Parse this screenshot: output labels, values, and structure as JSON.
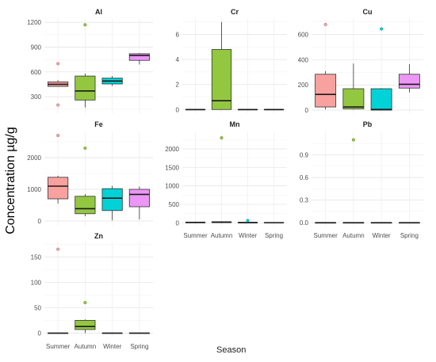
{
  "chart_data": {
    "type": "box",
    "ylabel": "Concentration µg/g",
    "xlabel": "Season",
    "categories": [
      "Summer",
      "Autumn",
      "Winter",
      "Spring"
    ],
    "colors": {
      "Summer": "#f8a19f",
      "Autumn": "#93c740",
      "Winter": "#00d2d8",
      "Spring": "#ec96f6"
    },
    "panels": [
      {
        "name": "Al",
        "ylim": [
          100,
          1250
        ],
        "ticks": [
          300,
          600,
          900,
          1200
        ],
        "boxes": [
          {
            "season": "Summer",
            "min": 420,
            "q1": 425,
            "median": 450,
            "q3": 480,
            "max": 500,
            "outliers": [
              700,
              200
            ]
          },
          {
            "season": "Autumn",
            "min": 170,
            "q1": 260,
            "median": 370,
            "q3": 550,
            "max": 580,
            "outliers": [
              1170
            ]
          },
          {
            "season": "Winter",
            "min": 430,
            "q1": 455,
            "median": 490,
            "q3": 525,
            "max": 550,
            "outliers": []
          },
          {
            "season": "Spring",
            "min": 690,
            "q1": 740,
            "median": 800,
            "q3": 820,
            "max": 830,
            "outliers": []
          }
        ]
      },
      {
        "name": "Cr",
        "ylim": [
          -0.3,
          7.3
        ],
        "ticks": [
          0,
          2,
          4,
          6
        ],
        "boxes": [
          {
            "season": "Summer",
            "min": 0,
            "q1": 0,
            "median": 0,
            "q3": 0,
            "max": 0,
            "outliers": []
          },
          {
            "season": "Autumn",
            "min": 0,
            "q1": 0,
            "median": 0.7,
            "q3": 4.8,
            "max": 7.0,
            "outliers": []
          },
          {
            "season": "Winter",
            "min": 0,
            "q1": 0,
            "median": 0,
            "q3": 0,
            "max": 0,
            "outliers": []
          },
          {
            "season": "Spring",
            "min": 0,
            "q1": 0,
            "median": 0,
            "q3": 0,
            "max": 0,
            "outliers": []
          }
        ]
      },
      {
        "name": "Cu",
        "ylim": [
          -25,
          730
        ],
        "ticks": [
          0,
          200,
          400,
          600
        ],
        "boxes": [
          {
            "season": "Summer",
            "min": 5,
            "q1": 25,
            "median": 125,
            "q3": 285,
            "max": 310,
            "outliers": [
              680
            ]
          },
          {
            "season": "Autumn",
            "min": 5,
            "q1": 10,
            "median": 25,
            "q3": 170,
            "max": 370,
            "outliers": []
          },
          {
            "season": "Winter",
            "min": 0,
            "q1": 0,
            "median": 5,
            "q3": 170,
            "max": 175,
            "outliers": [
              645
            ]
          },
          {
            "season": "Spring",
            "min": 140,
            "q1": 175,
            "median": 205,
            "q3": 285,
            "max": 365,
            "outliers": []
          }
        ]
      },
      {
        "name": "Fe",
        "ylim": [
          -150,
          2800
        ],
        "ticks": [
          0,
          1000,
          2000
        ],
        "boxes": [
          {
            "season": "Summer",
            "min": 550,
            "q1": 700,
            "median": 1100,
            "q3": 1380,
            "max": 1430,
            "outliers": [
              2700
            ]
          },
          {
            "season": "Autumn",
            "min": 150,
            "q1": 230,
            "median": 390,
            "q3": 780,
            "max": 850,
            "outliers": [
              2300
            ]
          },
          {
            "season": "Winter",
            "min": 20,
            "q1": 330,
            "median": 720,
            "q3": 1020,
            "max": 1110,
            "outliers": []
          },
          {
            "season": "Spring",
            "min": 50,
            "q1": 450,
            "median": 840,
            "q3": 1000,
            "max": 1090,
            "outliers": []
          }
        ]
      },
      {
        "name": "Mn",
        "ylim": [
          -80,
          2450
        ],
        "ticks": [
          0,
          500,
          1000,
          1500,
          2000
        ],
        "boxes": [
          {
            "season": "Summer",
            "min": 0,
            "q1": 0,
            "median": 10,
            "q3": 20,
            "max": 30,
            "outliers": []
          },
          {
            "season": "Autumn",
            "min": 0,
            "q1": 5,
            "median": 15,
            "q3": 30,
            "max": 40,
            "outliers": [
              2300
            ]
          },
          {
            "season": "Winter",
            "min": 0,
            "q1": 0,
            "median": 5,
            "q3": 15,
            "max": 20,
            "outliers": [
              60
            ]
          },
          {
            "season": "Spring",
            "min": 0,
            "q1": 0,
            "median": 3,
            "q3": 8,
            "max": 12,
            "outliers": []
          }
        ]
      },
      {
        "name": "Pb",
        "ylim": [
          -0.04,
          1.2
        ],
        "ticks": [
          0.0,
          0.3,
          0.6,
          0.9
        ],
        "tickFormat": "1dp",
        "boxes": [
          {
            "season": "Summer",
            "min": 0,
            "q1": 0,
            "median": 0,
            "q3": 0,
            "max": 0,
            "outliers": []
          },
          {
            "season": "Autumn",
            "min": 0,
            "q1": 0,
            "median": 0,
            "q3": 0,
            "max": 0,
            "outliers": [
              1.1
            ]
          },
          {
            "season": "Winter",
            "min": 0,
            "q1": 0,
            "median": 0,
            "q3": 0,
            "max": 0,
            "outliers": []
          },
          {
            "season": "Spring",
            "min": 0,
            "q1": 0,
            "median": 0,
            "q3": 0,
            "max": 0,
            "outliers": []
          }
        ]
      },
      {
        "name": "Zn",
        "ylim": [
          -7,
          180
        ],
        "ticks": [
          0,
          50,
          100,
          150
        ],
        "boxes": [
          {
            "season": "Summer",
            "min": 0,
            "q1": 0,
            "median": 0,
            "q3": 0,
            "max": 0,
            "outliers": [
              165
            ]
          },
          {
            "season": "Autumn",
            "min": 0,
            "q1": 7,
            "median": 13,
            "q3": 25,
            "max": 27,
            "outliers": [
              60
            ]
          },
          {
            "season": "Winter",
            "min": 0,
            "q1": 0,
            "median": 0,
            "q3": 0,
            "max": 0,
            "outliers": []
          },
          {
            "season": "Spring",
            "min": 0,
            "q1": 0,
            "median": 0,
            "q3": 0,
            "max": 0,
            "outliers": []
          }
        ]
      }
    ]
  }
}
